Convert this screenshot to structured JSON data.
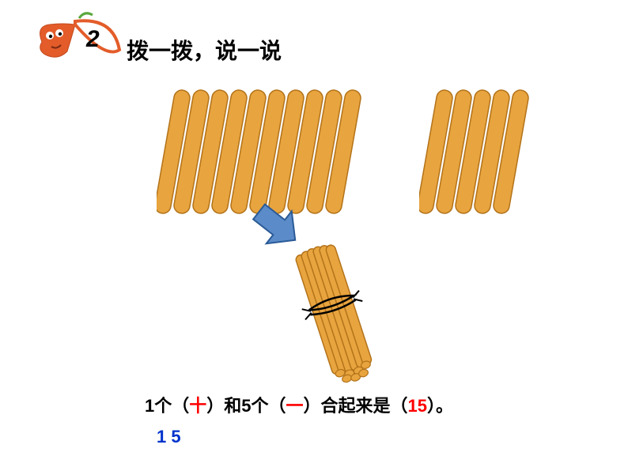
{
  "bullet": {
    "number": "2",
    "pepper_color": "#e35c2a",
    "leaf_stroke": "#5aa83c",
    "number_color": "#000000",
    "number_fontsize": 28
  },
  "heading": {
    "text": "拨一拨，说一说",
    "fontsize": 28,
    "color": "#000000"
  },
  "sticks": {
    "group1_count": 10,
    "group2_count": 5,
    "stick_fill": "#e8a43e",
    "stick_stroke": "#b3731a",
    "stick_width": 20,
    "stick_height": 158,
    "spacing": 24,
    "tilt_deg": 10
  },
  "arrow": {
    "fill": "#5b8cc9",
    "stroke": "#2b5b97",
    "rotation_deg": 38
  },
  "bundle": {
    "stick_fill": "#e8a43e",
    "stick_stroke": "#b3731a",
    "tie_color": "#000000",
    "tilt_deg": -18
  },
  "sentence": {
    "prefix1": "1个（",
    "answer1": "十",
    "mid1": "）和5个（",
    "answer2": "一",
    "mid2": "）合起来是（",
    "answer3": "15",
    "suffix": "）。",
    "text_color": "#000000",
    "answer_color": "#ff0000",
    "fontsize": 22
  },
  "number_display": {
    "text": "1 5",
    "color": "#0033cc",
    "fontsize": 22
  }
}
